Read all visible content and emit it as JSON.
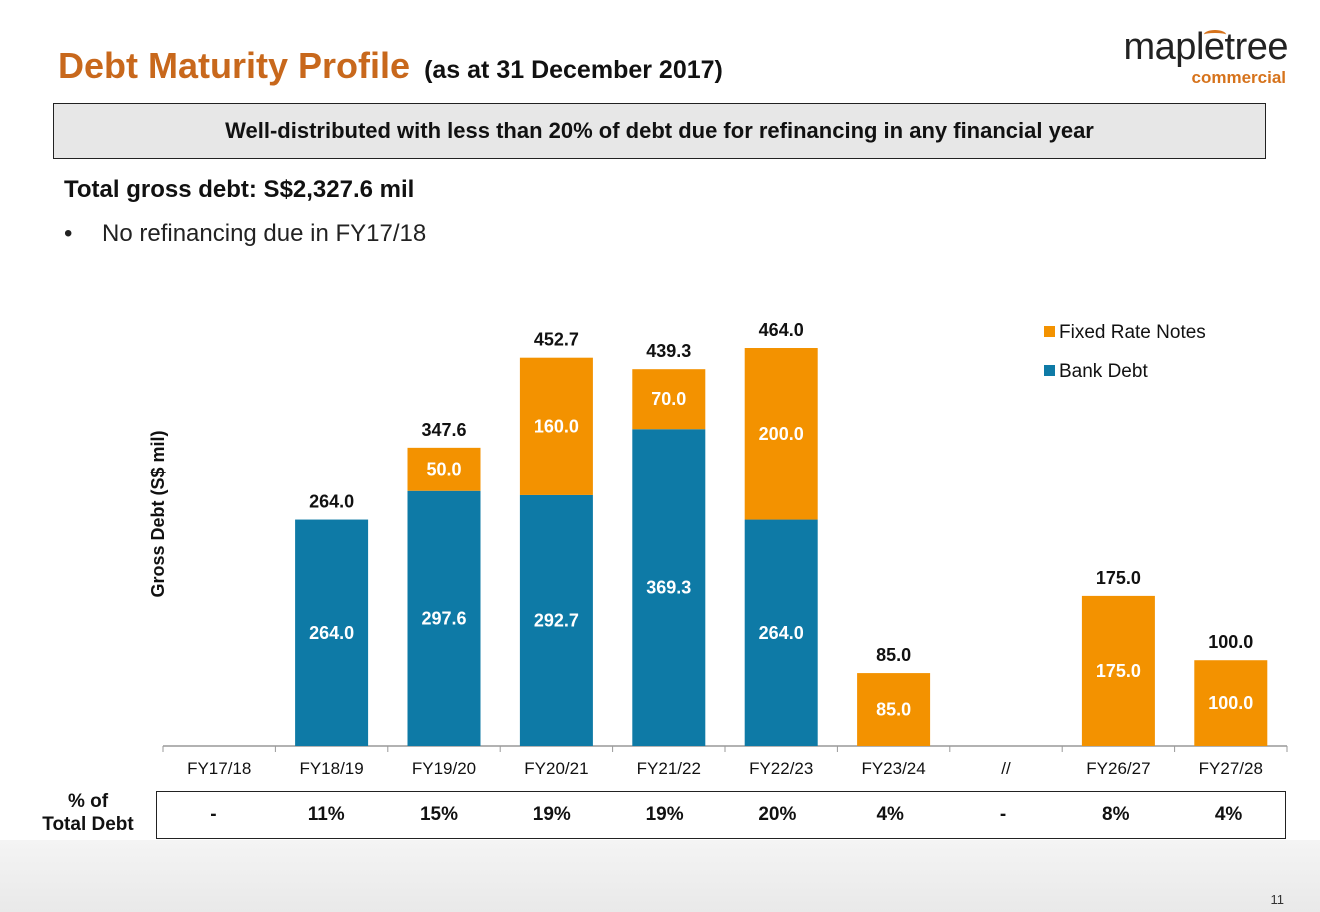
{
  "header": {
    "title": "Debt Maturity Profile",
    "subtitle": "(as at 31 December 2017)"
  },
  "logo": {
    "brand": "mapletree",
    "sub": "commercial"
  },
  "banner": "Well-distributed with less than 20% of debt due for refinancing in any financial year",
  "summary": {
    "total": "Total gross debt: S$2,327.6 mil",
    "bullet": "No refinancing due in FY17/18"
  },
  "colors": {
    "bank_debt": "#0e7aa6",
    "fixed_rate_notes": "#f39200",
    "title": "#c8681c"
  },
  "chart_data": {
    "type": "bar",
    "stacked": true,
    "ylabel": "Gross Debt (S$ mil)",
    "categories": [
      "FY17/18",
      "FY18/19",
      "FY19/20",
      "FY20/21",
      "FY21/22",
      "FY22/23",
      "FY23/24",
      "//",
      "FY26/27",
      "FY27/28"
    ],
    "series": [
      {
        "name": "Bank Debt",
        "values": [
          0,
          264.0,
          297.6,
          292.7,
          369.3,
          264.0,
          0,
          0,
          0,
          0
        ]
      },
      {
        "name": "Fixed Rate Notes",
        "values": [
          0,
          0,
          50.0,
          160.0,
          70.0,
          200.0,
          85.0,
          0,
          175.0,
          100.0
        ]
      }
    ],
    "totals": [
      "",
      "264.0",
      "347.6",
      "452.7",
      "439.3",
      "464.0",
      "85.0",
      "",
      "175.0",
      "100.0"
    ],
    "segment_labels": [
      {
        "bank": "",
        "fixed": ""
      },
      {
        "bank": "264.0",
        "fixed": ""
      },
      {
        "bank": "297.6",
        "fixed": "50.0"
      },
      {
        "bank": "292.7",
        "fixed": "160.0"
      },
      {
        "bank": "369.3",
        "fixed": "70.0"
      },
      {
        "bank": "264.0",
        "fixed": "200.0"
      },
      {
        "bank": "",
        "fixed": "85.0"
      },
      {
        "bank": "",
        "fixed": ""
      },
      {
        "bank": "",
        "fixed": "175.0"
      },
      {
        "bank": "",
        "fixed": "100.0"
      }
    ],
    "ylim": [
      0,
      464
    ],
    "grid": false,
    "legend": "top-right",
    "legend_order": [
      "Fixed Rate Notes",
      "Bank Debt"
    ]
  },
  "pct_table": {
    "label": [
      "% of",
      "Total Debt"
    ],
    "values": [
      "-",
      "11%",
      "15%",
      "19%",
      "19%",
      "20%",
      "4%",
      "-",
      "8%",
      "4%"
    ]
  },
  "page_number": "11"
}
